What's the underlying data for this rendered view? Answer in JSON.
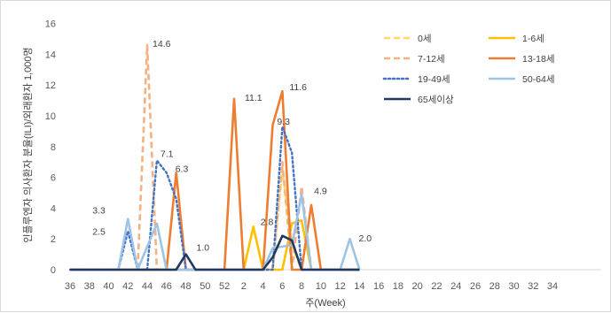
{
  "chart_data": {
    "type": "line",
    "title": "",
    "xlabel": "주(Week)",
    "ylabel": "인플루엔자 의사환자 분율(ILI)/외래환자 1,000명",
    "ylim": [
      0,
      16
    ],
    "yticks": [
      "0",
      "2",
      "4",
      "6",
      "8",
      "10",
      "12",
      "14",
      "16"
    ],
    "x": [
      36,
      37,
      38,
      39,
      40,
      41,
      42,
      43,
      44,
      45,
      46,
      47,
      48,
      49,
      50,
      51,
      52,
      53,
      54,
      55,
      56,
      57,
      58,
      59,
      60,
      61,
      62,
      63,
      64,
      65,
      66,
      67,
      68,
      69,
      70,
      71,
      72,
      73,
      74,
      75,
      76,
      77,
      78,
      79,
      80,
      81,
      82,
      83,
      84,
      85,
      86,
      87,
      88,
      89,
      90,
      91
    ],
    "xtick_labels": [
      "36",
      "38",
      "40",
      "42",
      "44",
      "46",
      "48",
      "50",
      "52",
      "2",
      "4",
      "6",
      "8",
      "10",
      "12",
      "14",
      "16",
      "18",
      "20",
      "22",
      "24",
      "26",
      "28",
      "30",
      "32",
      "34"
    ],
    "grid": false,
    "legend_position": "top-right",
    "series": [
      {
        "name": "0세",
        "color": "#FFD966",
        "dash": "dash",
        "points": [
          [
            36,
            0
          ],
          [
            42,
            0
          ],
          [
            43,
            0
          ],
          [
            44,
            0
          ],
          [
            48,
            0
          ],
          [
            53,
            0
          ],
          [
            56,
            0
          ],
          [
            57,
            0
          ],
          [
            58,
            6.6
          ],
          [
            59,
            1.5
          ],
          [
            60,
            0
          ],
          [
            61,
            0
          ],
          [
            66,
            0
          ]
        ]
      },
      {
        "name": "1-6세",
        "color": "#FFC000",
        "dash": "solid",
        "points": [
          [
            36,
            0
          ],
          [
            53,
            0
          ],
          [
            54,
            0
          ],
          [
            55,
            2.8
          ],
          [
            56,
            0
          ],
          [
            58,
            0
          ],
          [
            59,
            3
          ],
          [
            60,
            3.2
          ],
          [
            61,
            0
          ],
          [
            66,
            0
          ]
        ]
      },
      {
        "name": "7-12세",
        "color": "#F4B183",
        "dash": "dash",
        "points": [
          [
            36,
            0
          ],
          [
            42,
            0
          ],
          [
            43,
            0
          ],
          [
            44,
            14.6
          ],
          [
            45,
            0
          ],
          [
            46,
            0
          ],
          [
            53,
            0
          ],
          [
            56,
            0
          ],
          [
            57,
            0
          ],
          [
            58,
            7
          ],
          [
            59,
            0
          ],
          [
            60,
            5.4
          ],
          [
            61,
            0
          ],
          [
            66,
            0
          ]
        ]
      },
      {
        "name": "13-18세",
        "color": "#ED7D31",
        "dash": "solid",
        "points": [
          [
            36,
            0
          ],
          [
            46,
            0
          ],
          [
            47,
            6.3
          ],
          [
            48,
            0
          ],
          [
            51,
            0
          ],
          [
            52,
            0
          ],
          [
            53,
            11.1
          ],
          [
            54,
            0
          ],
          [
            56,
            0
          ],
          [
            57,
            9.4
          ],
          [
            58,
            11.6
          ],
          [
            59,
            0
          ],
          [
            60,
            0
          ],
          [
            61,
            4.2
          ],
          [
            62,
            0
          ],
          [
            66,
            0
          ]
        ]
      },
      {
        "name": "19-49세",
        "color": "#4472C4",
        "dash": "dot",
        "points": [
          [
            36,
            0
          ],
          [
            41,
            0
          ],
          [
            42,
            2.5
          ],
          [
            43,
            0
          ],
          [
            44,
            0
          ],
          [
            45,
            7.1
          ],
          [
            46,
            6.3
          ],
          [
            47,
            4.6
          ],
          [
            48,
            0
          ],
          [
            56,
            0
          ],
          [
            57,
            0
          ],
          [
            58,
            9.3
          ],
          [
            59,
            7.6
          ],
          [
            60,
            0
          ],
          [
            61,
            0
          ],
          [
            66,
            0
          ]
        ]
      },
      {
        "name": "50-64세",
        "color": "#9DC3E6",
        "dash": "solid",
        "points": [
          [
            36,
            0
          ],
          [
            41,
            0
          ],
          [
            42,
            3.3
          ],
          [
            43,
            0
          ],
          [
            45,
            3
          ],
          [
            46,
            0
          ],
          [
            47,
            0
          ],
          [
            56,
            0
          ],
          [
            57,
            1.4
          ],
          [
            58,
            1.5
          ],
          [
            59,
            1.6
          ],
          [
            60,
            4.9
          ],
          [
            61,
            0
          ],
          [
            64,
            0
          ],
          [
            65,
            2
          ],
          [
            66,
            0
          ]
        ]
      },
      {
        "name": "65세이상",
        "color": "#203864",
        "dash": "solid",
        "points": [
          [
            36,
            0
          ],
          [
            47,
            0
          ],
          [
            48,
            1
          ],
          [
            49,
            0
          ],
          [
            56,
            0
          ],
          [
            57,
            0.8
          ],
          [
            58,
            2.2
          ],
          [
            59,
            1.9
          ],
          [
            60,
            0
          ],
          [
            66,
            0
          ]
        ]
      }
    ],
    "data_labels": [
      {
        "text": "14.6",
        "x": 44,
        "y": 14.6
      },
      {
        "text": "7.1",
        "x": 45,
        "y": 7.1
      },
      {
        "text": "6.3",
        "x": 46,
        "y": 6.3
      },
      {
        "text": "3.3",
        "x": 42,
        "y": 3.3
      },
      {
        "text": "2.5",
        "x": 42,
        "y": 2.5
      },
      {
        "text": "1.0",
        "x": 48,
        "y": 1.0
      },
      {
        "text": "11.1",
        "x": 53,
        "y": 11.1
      },
      {
        "text": "2.8",
        "x": 55,
        "y": 2.8
      },
      {
        "text": "11.6",
        "x": 58,
        "y": 11.6
      },
      {
        "text": "9.3",
        "x": 58,
        "y": 9.3
      },
      {
        "text": "4.9",
        "x": 60,
        "y": 4.9
      },
      {
        "text": "2.0",
        "x": 65,
        "y": 2.0
      }
    ]
  }
}
